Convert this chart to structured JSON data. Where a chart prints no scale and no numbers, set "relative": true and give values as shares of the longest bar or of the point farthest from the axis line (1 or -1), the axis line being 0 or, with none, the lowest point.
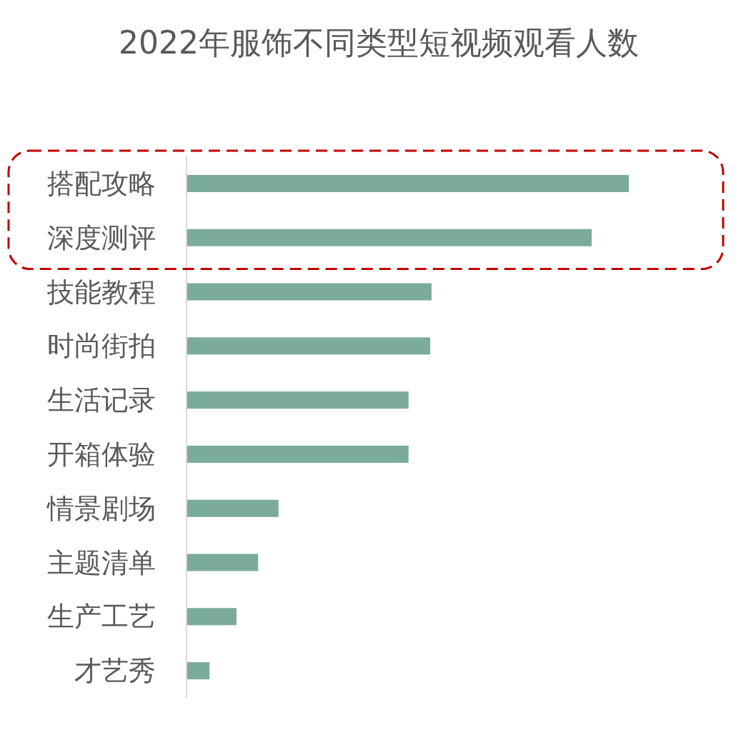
{
  "chart_data": {
    "type": "bar",
    "orientation": "horizontal",
    "relative": true,
    "title": "2022年服饰不同类型短视频观看人数",
    "categories": [
      "搭配攻略",
      "深度测评",
      "技能教程",
      "时尚街拍",
      "生活记录",
      "开箱体验",
      "情景剧场",
      "主题清单",
      "生产工艺",
      "才艺秀"
    ],
    "values": [
      1,
      0.916,
      0.554,
      0.551,
      0.502,
      0.502,
      0.208,
      0.162,
      0.113,
      0.052
    ],
    "color": "#7aab9c"
  }
}
